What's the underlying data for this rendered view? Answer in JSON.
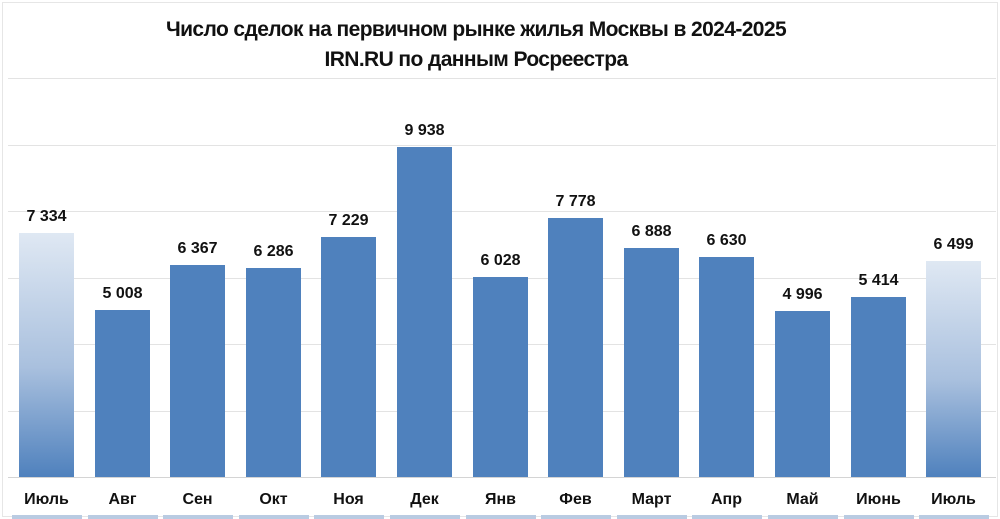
{
  "chart_data": {
    "type": "bar",
    "title": "Число сделок на первичном рынке жилья  Москвы в 2024-2025",
    "subtitle": "IRN.RU по данным Росреестра",
    "xlabel": "",
    "ylabel": "",
    "ylim": [
      0,
      12000
    ],
    "grid": true,
    "gridlines": [
      2000,
      4000,
      6000,
      8000,
      10000,
      12000
    ],
    "legend": "none",
    "categories": [
      "Июль",
      "Авг",
      "Сен",
      "Окт",
      "Ноя",
      "Дек",
      "Янв",
      "Фев",
      "Март",
      "Апр",
      "Май",
      "Июнь",
      "Июль"
    ],
    "values": [
      7334,
      5008,
      6367,
      6286,
      7229,
      9938,
      6028,
      7778,
      6888,
      6630,
      4996,
      5414,
      6499
    ],
    "value_labels": [
      "7 334",
      "5 008",
      "6 367",
      "6 286",
      "7 229",
      "9 938",
      "6 028",
      "7 778",
      "6 888",
      "6 630",
      "4 996",
      "5 414",
      "6 499"
    ],
    "highlighted": [
      true,
      false,
      false,
      false,
      false,
      false,
      false,
      false,
      false,
      false,
      false,
      false,
      true
    ],
    "colors": {
      "bar": "#4f81bd",
      "highlight_top": "#dfe8f3",
      "grid": "#e3e3e3"
    }
  }
}
